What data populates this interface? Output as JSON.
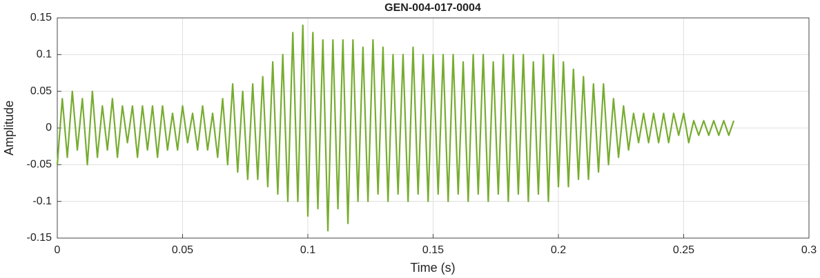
{
  "chart_data": {
    "type": "line",
    "title": "GEN-004-017-0004",
    "xlabel": "Time (s)",
    "ylabel": "Amplitude",
    "x": [
      0,
      0.002,
      0.004,
      0.006,
      0.008,
      0.01,
      0.012,
      0.014,
      0.016,
      0.018,
      0.02,
      0.022,
      0.024,
      0.026,
      0.028,
      0.03,
      0.032,
      0.034,
      0.036,
      0.038,
      0.04,
      0.042,
      0.044,
      0.046,
      0.048,
      0.05,
      0.052,
      0.054,
      0.056,
      0.058,
      0.06,
      0.062,
      0.064,
      0.066,
      0.068,
      0.07,
      0.072,
      0.074,
      0.076,
      0.078,
      0.08,
      0.082,
      0.084,
      0.086,
      0.088,
      0.09,
      0.092,
      0.094,
      0.096,
      0.098,
      0.1,
      0.102,
      0.104,
      0.106,
      0.108,
      0.11,
      0.112,
      0.114,
      0.116,
      0.118,
      0.12,
      0.122,
      0.124,
      0.126,
      0.128,
      0.13,
      0.132,
      0.134,
      0.136,
      0.138,
      0.14,
      0.142,
      0.144,
      0.146,
      0.148,
      0.15,
      0.152,
      0.154,
      0.156,
      0.158,
      0.16,
      0.162,
      0.164,
      0.166,
      0.168,
      0.17,
      0.172,
      0.174,
      0.176,
      0.178,
      0.18,
      0.182,
      0.184,
      0.186,
      0.188,
      0.19,
      0.192,
      0.194,
      0.196,
      0.198,
      0.2,
      0.202,
      0.204,
      0.206,
      0.208,
      0.21,
      0.212,
      0.214,
      0.216,
      0.218,
      0.22,
      0.222,
      0.224,
      0.226,
      0.228,
      0.23,
      0.232,
      0.234,
      0.236,
      0.238,
      0.24,
      0.242,
      0.244,
      0.246,
      0.248,
      0.25,
      0.252,
      0.254,
      0.256,
      0.258,
      0.26,
      0.262,
      0.264,
      0.266,
      0.268,
      0.27
    ],
    "series": [
      {
        "name": "Amplitude",
        "color": "#77ac30",
        "values": [
          -0.05,
          0.04,
          -0.04,
          0.05,
          -0.03,
          0.04,
          -0.05,
          0.05,
          -0.04,
          0.03,
          -0.03,
          0.04,
          -0.04,
          0.03,
          -0.02,
          0.03,
          -0.04,
          0.03,
          -0.03,
          0.03,
          -0.04,
          0.03,
          -0.03,
          0.02,
          -0.03,
          0.03,
          -0.02,
          0.02,
          -0.03,
          0.03,
          -0.03,
          0.02,
          -0.04,
          0.04,
          -0.05,
          0.06,
          -0.06,
          0.05,
          -0.07,
          0.06,
          -0.07,
          0.07,
          -0.08,
          0.09,
          -0.09,
          0.1,
          -0.1,
          0.13,
          -0.1,
          0.14,
          -0.12,
          0.13,
          -0.11,
          0.12,
          -0.14,
          0.12,
          -0.11,
          0.12,
          -0.13,
          0.12,
          -0.1,
          0.11,
          -0.1,
          0.12,
          -0.09,
          0.11,
          -0.1,
          0.1,
          -0.09,
          0.1,
          -0.1,
          0.11,
          -0.09,
          0.1,
          -0.1,
          0.1,
          -0.09,
          0.1,
          -0.1,
          0.1,
          -0.09,
          0.09,
          -0.1,
          0.1,
          -0.09,
          0.1,
          -0.1,
          0.09,
          -0.09,
          0.1,
          -0.1,
          0.1,
          -0.09,
          0.1,
          -0.1,
          0.09,
          -0.09,
          0.1,
          -0.1,
          0.1,
          -0.08,
          0.09,
          -0.08,
          0.08,
          -0.07,
          0.07,
          -0.07,
          0.06,
          -0.06,
          0.06,
          -0.05,
          0.04,
          -0.04,
          0.03,
          -0.03,
          0.02,
          -0.02,
          0.02,
          -0.02,
          0.02,
          -0.02,
          0.02,
          -0.02,
          0.02,
          -0.01,
          0.02,
          -0.02,
          0.01,
          -0.01,
          0.01,
          -0.01,
          0.01,
          -0.01,
          0.01,
          -0.01,
          0.01
        ]
      }
    ],
    "xlim": [
      0,
      0.3
    ],
    "xticks": [
      0,
      0.05,
      0.1,
      0.15,
      0.2,
      0.25,
      0.3
    ],
    "ylim": [
      -0.15,
      0.15
    ],
    "yticks": [
      -0.15,
      -0.1,
      -0.05,
      0,
      0.05,
      0.1,
      0.15
    ],
    "grid": true
  }
}
